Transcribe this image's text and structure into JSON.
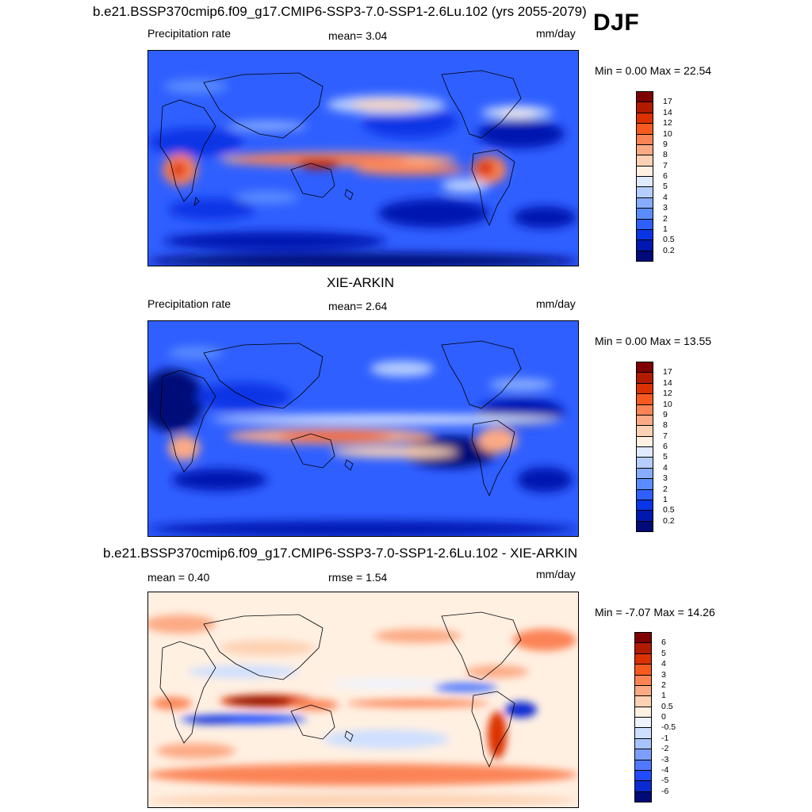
{
  "season": "DJF",
  "panels": [
    {
      "id": "model",
      "title": "b.e21.BSSP370cmip6.f09_g17.CMIP6-SSP3-7.0-SSP1-2.6Lu.102 (yrs 2055-2079)",
      "left_label": "Precipitation rate",
      "mid_label": "mean=   3.04",
      "units": "mm/day",
      "minmax": "Min =   0.00 Max =  22.54",
      "colorbar_labels": [
        "17",
        "14",
        "12",
        "10",
        "9",
        "8",
        "7",
        "6",
        "5",
        "4",
        "3",
        "2",
        "1",
        "0.5",
        "0.2"
      ],
      "colorbar_colors": [
        "#7f0000",
        "#b21b00",
        "#dc3100",
        "#f65a1e",
        "#fb8457",
        "#fcaa85",
        "#fdd2b4",
        "#fff0e2",
        "#dfeaff",
        "#b5ceff",
        "#87acff",
        "#5a8cff",
        "#2f5fff",
        "#0a35e6",
        "#0018b0",
        "#000a78"
      ]
    },
    {
      "id": "obs",
      "title": "XIE-ARKIN",
      "left_label": "Precipitation rate",
      "mid_label": "mean=   2.64",
      "units": "mm/day",
      "minmax": "Min =   0.00 Max =  13.55",
      "colorbar_labels": [
        "17",
        "14",
        "12",
        "10",
        "9",
        "8",
        "7",
        "6",
        "5",
        "4",
        "3",
        "2",
        "1",
        "0.5",
        "0.2"
      ],
      "colorbar_colors": [
        "#7f0000",
        "#b21b00",
        "#dc3100",
        "#f65a1e",
        "#fb8457",
        "#fcaa85",
        "#fdd2b4",
        "#fff0e2",
        "#dfeaff",
        "#b5ceff",
        "#87acff",
        "#5a8cff",
        "#2f5fff",
        "#0a35e6",
        "#0018b0",
        "#000a78"
      ]
    },
    {
      "id": "diff",
      "title": "b.e21.BSSP370cmip6.f09_g17.CMIP6-SSP3-7.0-SSP1-2.6Lu.102 - XIE-ARKIN",
      "left_label": "mean =   0.40",
      "mid_label": "rmse =   1.54",
      "units": "mm/day",
      "minmax": "Min =  -7.07 Max =  14.26",
      "colorbar_labels": [
        "6",
        "5",
        "4",
        "3",
        "2",
        "1",
        "0.5",
        "0",
        "-0.5",
        "-1",
        "-2",
        "-3",
        "-4",
        "-5",
        "-6"
      ],
      "colorbar_colors": [
        "#7f0000",
        "#b21b00",
        "#dc3100",
        "#f65a1e",
        "#fb8457",
        "#fcaa85",
        "#fdd2b4",
        "#fff0e2",
        "#eef4ff",
        "#cfdfff",
        "#a8c2ff",
        "#7c9fff",
        "#4f78ff",
        "#1f4bff",
        "#0a2ad2",
        "#000a78"
      ]
    }
  ]
}
